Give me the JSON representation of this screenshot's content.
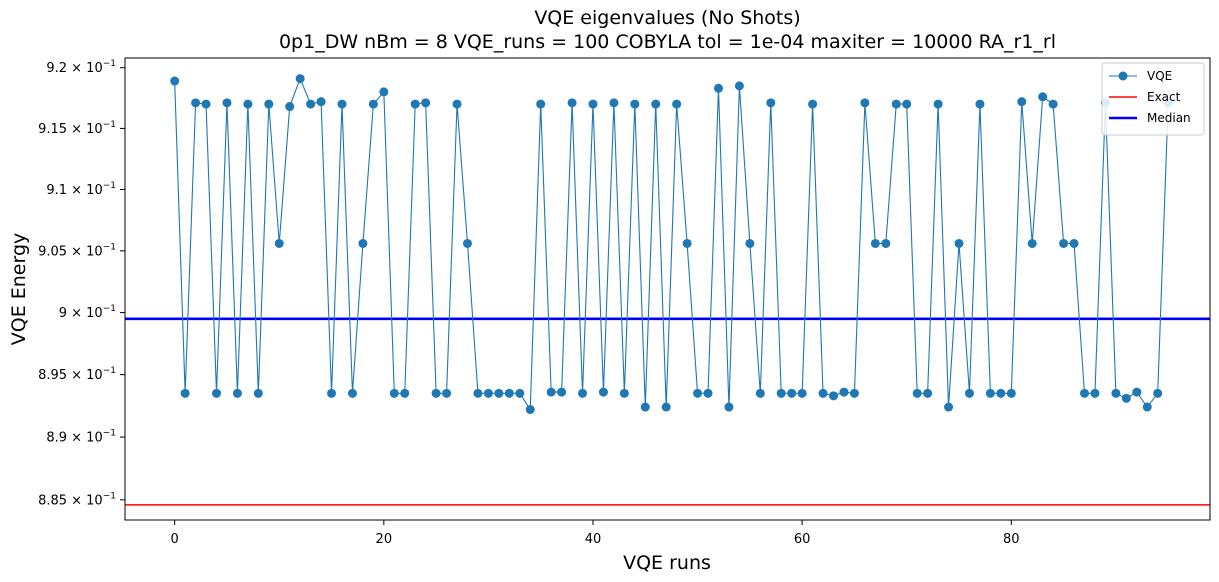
{
  "chart_data": {
    "type": "line",
    "title": "VQE eigenvalues (No Shots)",
    "subtitle": "0p1_DW    nBm = 8    VQE_runs = 100    COBYLA    tol = 1e-04    maxiter = 10000    RA_r1_rl",
    "xlabel": "VQE runs",
    "ylabel": "VQE Energy",
    "xlim": [
      -4.75,
      99
    ],
    "ylim": [
      0.8834,
      0.9208
    ],
    "y_scale": "log",
    "x_ticks": [
      0,
      20,
      40,
      60,
      80
    ],
    "x_tick_labels": [
      "0",
      "20",
      "40",
      "60",
      "80"
    ],
    "y_ticks": [
      0.885,
      0.89,
      0.895,
      0.9,
      0.905,
      0.91,
      0.915,
      0.92
    ],
    "y_tick_labels": [
      {
        "mantissa": "8.85",
        "exp": "−1"
      },
      {
        "mantissa": "8.9",
        "exp": "−1"
      },
      {
        "mantissa": "8.95",
        "exp": "−1"
      },
      {
        "mantissa": "9",
        "exp": "−1"
      },
      {
        "mantissa": "9.05",
        "exp": "−1"
      },
      {
        "mantissa": "9.1",
        "exp": "−1"
      },
      {
        "mantissa": "9.15",
        "exp": "−1"
      },
      {
        "mantissa": "9.2",
        "exp": "−1"
      }
    ],
    "times_symbol": "×",
    "base": "10",
    "grid": false,
    "legend": {
      "placement": "top-right",
      "entries": [
        {
          "label": "VQE",
          "color": "#1f77b4",
          "style": "line-marker"
        },
        {
          "label": "Exact",
          "color": "#ff0000",
          "style": "line"
        },
        {
          "label": "Median",
          "color": "#0000ff",
          "style": "thick-line"
        }
      ]
    },
    "series": [
      {
        "name": "VQE",
        "color": "#1f77b4",
        "x": [
          0,
          1,
          2,
          3,
          4,
          5,
          6,
          7,
          8,
          9,
          10,
          11,
          12,
          13,
          14,
          15,
          16,
          17,
          18,
          19,
          20,
          21,
          22,
          23,
          24,
          25,
          26,
          27,
          28,
          29,
          30,
          31,
          32,
          33,
          34,
          35,
          36,
          37,
          38,
          39,
          40,
          41,
          42,
          43,
          44,
          45,
          46,
          47,
          48,
          49,
          50,
          51,
          52,
          53,
          54,
          55,
          56,
          57,
          58,
          59,
          60,
          61,
          62,
          63,
          64,
          65,
          66,
          67,
          68,
          69,
          70,
          71,
          72,
          73,
          74,
          75,
          76,
          77,
          78,
          79,
          80,
          81,
          82,
          83,
          84,
          85,
          86,
          87,
          88,
          89,
          90,
          91,
          92,
          93,
          94,
          95
        ],
        "y": [
          0.9189,
          0.8935,
          0.9171,
          0.917,
          0.8935,
          0.9171,
          0.8935,
          0.917,
          0.8935,
          0.917,
          0.9056,
          0.9168,
          0.9191,
          0.917,
          0.9172,
          0.8935,
          0.917,
          0.8935,
          0.9056,
          0.917,
          0.918,
          0.8935,
          0.8935,
          0.917,
          0.9171,
          0.8935,
          0.8935,
          0.917,
          0.9056,
          0.8935,
          0.8935,
          0.8935,
          0.8935,
          0.8935,
          0.8922,
          0.917,
          0.8936,
          0.8936,
          0.9171,
          0.8935,
          0.917,
          0.8936,
          0.9171,
          0.8935,
          0.917,
          0.8924,
          0.917,
          0.8924,
          0.917,
          0.9056,
          0.8935,
          0.8935,
          0.9183,
          0.8924,
          0.9185,
          0.9056,
          0.8935,
          0.9171,
          0.8935,
          0.8935,
          0.8935,
          0.917,
          0.8935,
          0.8933,
          0.8936,
          0.8935,
          0.9171,
          0.9056,
          0.9056,
          0.917,
          0.917,
          0.8935,
          0.8935,
          0.917,
          0.8924,
          0.9056,
          0.8935,
          0.917,
          0.8935,
          0.8935,
          0.8935,
          0.9172,
          0.9056,
          0.9176,
          0.917,
          0.9056,
          0.9056,
          0.8935,
          0.8935,
          0.9171,
          0.8935,
          0.8931,
          0.8936,
          0.8924,
          0.8935,
          0.9171
        ]
      },
      {
        "name": "Exact",
        "color": "#ff0000",
        "y_const": 0.8846
      },
      {
        "name": "Median",
        "color": "#0000ff",
        "y_const": 0.8995
      }
    ]
  }
}
